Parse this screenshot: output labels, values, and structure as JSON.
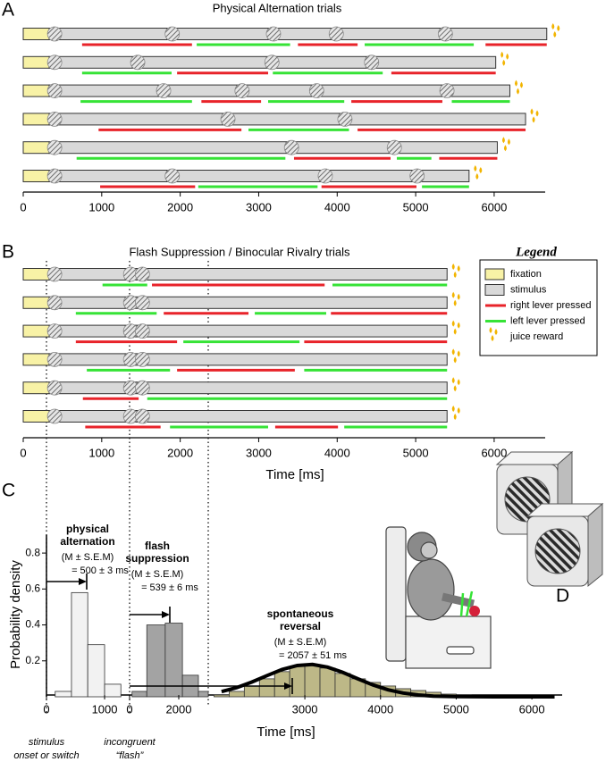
{
  "chart_data": [
    {
      "type": "timeline",
      "panel": "A",
      "title": "Physical Alternation trials",
      "xlim": [
        0,
        6650
      ],
      "xticks": [
        0,
        1000,
        2000,
        3000,
        4000,
        5000,
        6000
      ],
      "fixation_end": 330,
      "fixation_color": "#f8f2a6",
      "stimulus_color": "#d9d9d9",
      "right_color": "#e8232a",
      "left_color": "#36e336",
      "juice_color": "#f2b400",
      "rows": [
        {
          "end": 6670,
          "switches": [
            400,
            1830,
            3120,
            3920,
            5310
          ],
          "right": [
            [
              750,
              2150
            ],
            [
              3500,
              4260
            ],
            [
              5890,
              6670
            ]
          ],
          "left": [
            [
              2210,
              3400
            ],
            [
              4350,
              5740
            ]
          ]
        },
        {
          "end": 6020,
          "switches": [
            400,
            1390,
            3100,
            4370
          ],
          "right": [
            [
              1960,
              3120
            ],
            [
              4690,
              6020
            ]
          ],
          "left": [
            [
              750,
              1890
            ],
            [
              3180,
              4580
            ]
          ]
        },
        {
          "end": 6200,
          "switches": [
            400,
            1720,
            2720,
            3670,
            5330
          ],
          "right": [
            [
              2270,
              3030
            ],
            [
              4180,
              5340
            ]
          ],
          "left": [
            [
              730,
              2150
            ],
            [
              3120,
              4090
            ],
            [
              5460,
              6200
            ]
          ]
        },
        {
          "end": 6400,
          "switches": [
            400,
            2540,
            4030
          ],
          "right": [
            [
              960,
              2780
            ],
            [
              4260,
              6400
            ]
          ],
          "left": [
            [
              2870,
              4150
            ]
          ]
        },
        {
          "end": 6040,
          "switches": [
            400,
            3350,
            4660
          ],
          "right": [
            [
              3450,
              4680
            ],
            [
              5300,
              6040
            ]
          ],
          "left": [
            [
              680,
              3340
            ],
            [
              4760,
              5200
            ]
          ]
        },
        {
          "end": 5680,
          "switches": [
            400,
            1830,
            3780,
            4950
          ],
          "right": [
            [
              980,
              2190
            ],
            [
              3800,
              5010
            ]
          ],
          "left": [
            [
              2230,
              3750
            ],
            [
              5080,
              5680
            ]
          ]
        }
      ]
    },
    {
      "type": "timeline",
      "panel": "B",
      "title": "Flash Suppression / Binocular Rivalry trials",
      "xlabel": "Time [ms]",
      "xlim": [
        0,
        6650
      ],
      "xticks": [
        0,
        1000,
        2000,
        3000,
        4000,
        5000,
        6000
      ],
      "fixation_end": 330,
      "fixation_color": "#f8f2a6",
      "stimulus_color": "#d9d9d9",
      "right_color": "#e8232a",
      "left_color": "#36e336",
      "juice_color": "#f2b400",
      "legend": {
        "title": "Legend",
        "items": [
          {
            "name": "fixation",
            "shape": "box",
            "color": "#f8f2a6"
          },
          {
            "name": "stimulus",
            "shape": "box",
            "color": "#d9d9d9"
          },
          {
            "name": "right lever pressed",
            "shape": "line",
            "color": "#e8232a"
          },
          {
            "name": "left lever pressed",
            "shape": "line",
            "color": "#36e336"
          },
          {
            "name": "juice reward",
            "shape": "drops",
            "color": "#f2b400"
          }
        ]
      },
      "rows": [
        {
          "end": 5400,
          "switches": [
            400,
            1300,
            1450
          ],
          "right": [
            [
              1640,
              3840
            ]
          ],
          "left": [
            [
              1010,
              1580
            ],
            [
              3940,
              5400
            ]
          ]
        },
        {
          "end": 5400,
          "switches": [
            400,
            1300,
            1450
          ],
          "right": [
            [
              1790,
              2870
            ],
            [
              3920,
              5400
            ]
          ],
          "left": [
            [
              670,
              1700
            ],
            [
              2950,
              3860
            ]
          ]
        },
        {
          "end": 5400,
          "switches": [
            400,
            1300,
            1450
          ],
          "right": [
            [
              670,
              1960
            ],
            [
              3580,
              5400
            ]
          ],
          "left": [
            [
              2040,
              3520
            ]
          ]
        },
        {
          "end": 5400,
          "switches": [
            400,
            1300,
            1450
          ],
          "right": [
            [
              1960,
              3460
            ]
          ],
          "left": [
            [
              810,
              1870
            ],
            [
              3580,
              5400
            ]
          ]
        },
        {
          "end": 5400,
          "switches": [
            400,
            1300,
            1450
          ],
          "right": [
            [
              760,
              1470
            ]
          ],
          "left": [
            [
              1580,
              5400
            ]
          ]
        },
        {
          "end": 5400,
          "switches": [
            400,
            1300,
            1450
          ],
          "right": [
            [
              790,
              1750
            ],
            [
              3210,
              4010
            ]
          ],
          "left": [
            [
              1870,
              3120
            ],
            [
              4090,
              5400
            ]
          ]
        }
      ]
    },
    {
      "type": "histogram",
      "panel": "C",
      "xlabel": "Time [ms]",
      "ylabel": "Probability density",
      "ylim": [
        0,
        0.9
      ],
      "yticks": [
        0.2,
        0.4,
        0.6,
        0.8
      ],
      "segments": [
        {
          "xlim": [
            0,
            1430
          ],
          "xticks": [
            0,
            1000
          ],
          "color": "#f2f2f2",
          "event": [
            "stimulus",
            "onset or switch"
          ],
          "bins": [
            150,
            430,
            710,
            1000,
            1280
          ],
          "counts": [
            0.03,
            0.58,
            0.29,
            0.07
          ]
        },
        {
          "xlim": [
            0,
            3200
          ],
          "xticks": [
            0,
            2000
          ],
          "color": "#a3a3a3",
          "event": [
            "incongruent",
            "“flash”"
          ],
          "bins": [
            100,
            700,
            1450,
            2150,
            2800,
            3200
          ],
          "counts": [
            0.03,
            0.4,
            0.41,
            0.12,
            0.03
          ]
        },
        {
          "xlim": [
            1700,
            6400
          ],
          "xticks": [
            3000,
            4000,
            5000,
            6000
          ],
          "color": "#bdb887",
          "bins": [
            1800,
            2000,
            2200,
            2400,
            2600,
            2800,
            3000,
            3200,
            3400,
            3600,
            3800,
            4000,
            4200,
            4400,
            4600,
            4800,
            5000,
            5200,
            5400
          ],
          "counts": [
            0.01,
            0.03,
            0.06,
            0.1,
            0.14,
            0.17,
            0.18,
            0.16,
            0.13,
            0.1,
            0.08,
            0.06,
            0.045,
            0.035,
            0.025,
            0.015,
            0.01,
            0.005
          ],
          "fit": {
            "x": [
              1900,
              2100,
              2300,
              2500,
              2700,
              2900,
              3100,
              3300,
              3500,
              3700,
              3900,
              4100,
              4300,
              4500,
              4700,
              5000,
              5500,
              6000,
              6300
            ],
            "y": [
              0.029,
              0.051,
              0.082,
              0.118,
              0.152,
              0.174,
              0.18,
              0.165,
              0.136,
              0.1,
              0.066,
              0.039,
              0.021,
              0.01,
              0.004,
              0.001,
              0,
              0,
              0
            ]
          }
        }
      ],
      "annotations": [
        {
          "lines": [
            "physical",
            "alternation"
          ],
          "stat_label": "(M ± S.E.M)",
          "stat": "= 500 ± 3 ms"
        },
        {
          "lines": [
            "flash",
            "suppression"
          ],
          "stat_label": "(M ± S.E.M)",
          "stat": "= 539 ± 6 ms"
        },
        {
          "lines": [
            "spontaneous",
            "reversal"
          ],
          "stat_label": "(M ± S.E.M)",
          "stat": "= 2057 ± 51 ms"
        }
      ]
    }
  ],
  "illustration": {
    "panel": "D"
  }
}
